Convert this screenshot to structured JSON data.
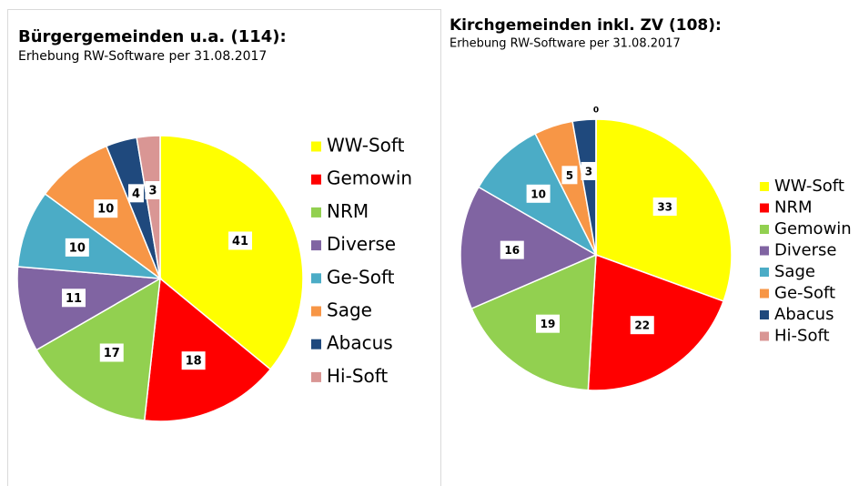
{
  "chart_data": [
    {
      "type": "pie",
      "title": "Bürgergemeinden u.a. (114):",
      "subtitle": "Erhebung RW-Software per 31.08.2017",
      "categories": [
        "WW-Soft",
        "Gemowin",
        "NRM",
        "Diverse",
        "Ge-Soft",
        "Sage",
        "Abacus",
        "Hi-Soft"
      ],
      "values": [
        41,
        18,
        17,
        11,
        10,
        10,
        4,
        3
      ],
      "colors": [
        "#ffff00",
        "#ff0000",
        "#92d050",
        "#8064a2",
        "#4bacc6",
        "#f79646",
        "#1f497d",
        "#d99694"
      ]
    },
    {
      "type": "pie",
      "title": "Kirchgemeinden inkl. ZV (108):",
      "subtitle": "Erhebung RW-Software per 31.08.2017",
      "categories": [
        "WW-Soft",
        "NRM",
        "Gemowin",
        "Diverse",
        "Sage",
        "Ge-Soft",
        "Abacus",
        "Hi-Soft"
      ],
      "values": [
        33,
        22,
        19,
        16,
        10,
        5,
        3,
        0
      ],
      "colors": [
        "#ffff00",
        "#ff0000",
        "#92d050",
        "#8064a2",
        "#4bacc6",
        "#f79646",
        "#1f497d",
        "#d99694"
      ]
    }
  ]
}
